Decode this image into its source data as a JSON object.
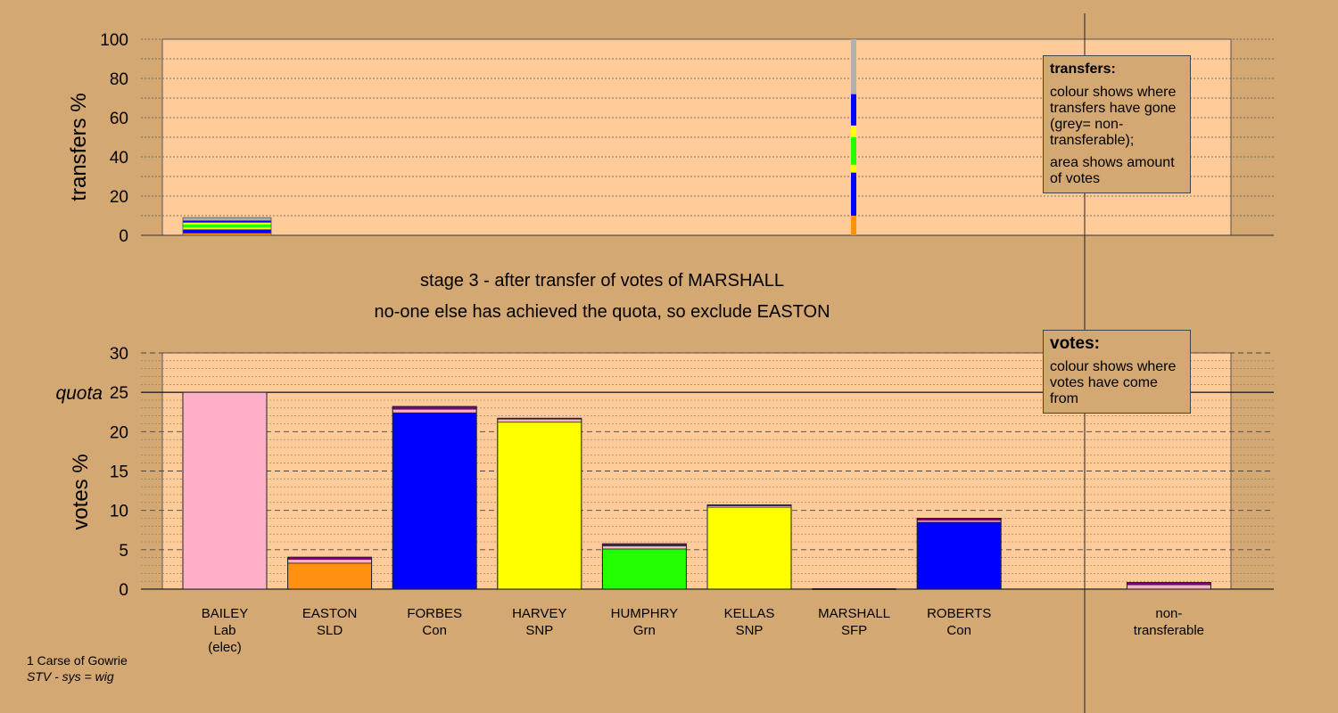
{
  "stage_title": "stage 3 - after transfer of votes of MARSHALL",
  "stage_subtitle": "no-one else has achieved the quota, so exclude EASTON",
  "footer": {
    "line1": "1 Carse of Gowrie",
    "line2": "STV - sys = wig"
  },
  "legend_transfers": {
    "heading": "transfers:",
    "text1": "colour shows where transfers have gone (grey= non-transferable);",
    "text2": "area shows amount of votes"
  },
  "legend_votes": {
    "heading": "votes:",
    "text1": "colour shows where votes have come from"
  },
  "colors": {
    "background": "#d4a873",
    "plot_bg": "#ffcc99",
    "Lab": "#ffb0c8",
    "SLD": "#ff9010",
    "Con": "#0000ff",
    "SNP": "#ffff00",
    "Grn": "#22ff00",
    "SFP": "#800080",
    "NonTransferable": "#b0b0b0"
  },
  "chart_data": [
    {
      "type": "bar",
      "ylabel": "transfers %",
      "ylim": [
        0,
        100
      ],
      "yticks": [
        0,
        20,
        40,
        60,
        80,
        100
      ],
      "grid": true,
      "series": [
        {
          "from": "BAILEY",
          "stack": [
            {
              "to": "EASTON",
              "value": 1
            },
            {
              "to": "FORBES",
              "value": 2
            },
            {
              "to": "HARVEY",
              "value": 1
            },
            {
              "to": "HUMPHRY",
              "value": 1.5
            },
            {
              "to": "KELLAS",
              "value": 1
            },
            {
              "to": "ROBERTS",
              "value": 1
            },
            {
              "to": "non-transferable",
              "value": 1.5
            }
          ]
        },
        {
          "from": "MARSHALL",
          "stack": [
            {
              "to": "EASTON",
              "value": 10
            },
            {
              "to": "FORBES",
              "value": 22
            },
            {
              "to": "HARVEY",
              "value": 4
            },
            {
              "to": "HUMPHRY",
              "value": 14
            },
            {
              "to": "KELLAS",
              "value": 6
            },
            {
              "to": "ROBERTS",
              "value": 16
            },
            {
              "to": "non-transferable",
              "value": 28
            }
          ]
        }
      ]
    },
    {
      "type": "bar",
      "ylabel": "votes %",
      "ylim": [
        0,
        30
      ],
      "yticks": [
        0,
        5,
        10,
        15,
        20,
        25,
        30
      ],
      "quota": 25,
      "quota_label": "quota",
      "grid": true,
      "categories": [
        {
          "name": "BAILEY",
          "party": "Lab",
          "note": "(elec)",
          "stack": [
            {
              "from": "Lab",
              "value": 25
            }
          ]
        },
        {
          "name": "EASTON",
          "party": "SLD",
          "note": "",
          "stack": [
            {
              "from": "SLD",
              "value": 3.3
            },
            {
              "from": "Lab",
              "value": 0.5
            },
            {
              "from": "SFP",
              "value": 0.25
            }
          ]
        },
        {
          "name": "FORBES",
          "party": "Con",
          "note": "",
          "stack": [
            {
              "from": "Con",
              "value": 22.4
            },
            {
              "from": "Lab",
              "value": 0.45
            },
            {
              "from": "SFP",
              "value": 0.35
            }
          ]
        },
        {
          "name": "HARVEY",
          "party": "SNP",
          "note": "",
          "stack": [
            {
              "from": "SNP",
              "value": 21.2
            },
            {
              "from": "Lab",
              "value": 0.4
            },
            {
              "from": "SFP",
              "value": 0.1
            }
          ]
        },
        {
          "name": "HUMPHRY",
          "party": "Grn",
          "note": "",
          "stack": [
            {
              "from": "Grn",
              "value": 5.1
            },
            {
              "from": "Lab",
              "value": 0.4
            },
            {
              "from": "SFP",
              "value": 0.25
            }
          ]
        },
        {
          "name": "KELLAS",
          "party": "SNP",
          "note": "",
          "stack": [
            {
              "from": "SNP",
              "value": 10.4
            },
            {
              "from": "Lab",
              "value": 0.2
            },
            {
              "from": "SFP",
              "value": 0.1
            }
          ]
        },
        {
          "name": "MARSHALL",
          "party": "SFP",
          "note": "",
          "stack": [
            {
              "from": "SFP",
              "value": 0
            }
          ]
        },
        {
          "name": "ROBERTS",
          "party": "Con",
          "note": "",
          "stack": [
            {
              "from": "Con",
              "value": 8.5
            },
            {
              "from": "Lab",
              "value": 0.25
            },
            {
              "from": "SFP",
              "value": 0.25
            }
          ]
        },
        {
          "name": "non-",
          "party": "transferable",
          "note": "",
          "stack": [
            {
              "from": "Lab",
              "value": 0.55
            },
            {
              "from": "SFP",
              "value": 0.3
            }
          ]
        }
      ]
    }
  ]
}
